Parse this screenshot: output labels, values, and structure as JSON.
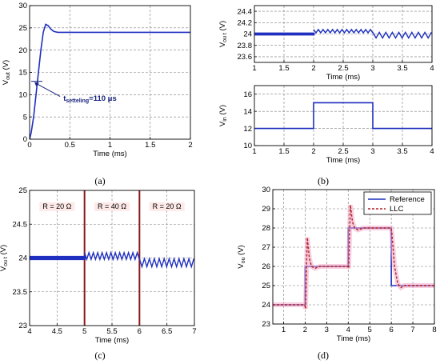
{
  "chart_data": [
    {
      "panel": "(a)",
      "type": "line",
      "xlabel": "Time (ms)",
      "ylabel": "V_out (V)",
      "ylabel_main": "V",
      "ylabel_sub": "out",
      "ylabel_unit": " (V)",
      "xlim": [
        0,
        2
      ],
      "ylim": [
        0,
        30
      ],
      "xticks": [
        0,
        0.5,
        1,
        1.5,
        2
      ],
      "yticks": [
        0,
        5,
        10,
        15,
        20,
        25,
        30
      ],
      "grid": true,
      "series": [
        {
          "color": "#1f2fbf",
          "x": [
            0,
            0.02,
            0.05,
            0.08,
            0.11,
            0.14,
            0.17,
            0.2,
            0.23,
            0.26,
            0.3,
            0.35,
            0.4,
            0.5,
            1.0,
            1.5,
            2.0
          ],
          "y": [
            0,
            1.5,
            5,
            10,
            15,
            20,
            24,
            25.8,
            25.5,
            24.8,
            24.2,
            24.0,
            24.0,
            24.0,
            24.0,
            24.0,
            24.0
          ]
        }
      ],
      "annotation": {
        "main": "t",
        "sub": "setteling",
        "rest": "=110 μs",
        "x": 0.11,
        "y": 13
      }
    },
    {
      "panel": "(b) top",
      "type": "line",
      "xlabel": "Time (ms)",
      "ylabel_main": "V",
      "ylabel_sub": "ou t",
      "ylabel_unit": " (V)",
      "xlim": [
        1,
        4
      ],
      "ylim": [
        23.5,
        24.5
      ],
      "xticks": [
        1,
        1.5,
        2,
        2.5,
        3,
        3.5,
        4
      ],
      "xtick_labels": [
        "1",
        "1.5",
        "2",
        "2.5",
        "3",
        "3.5",
        "4"
      ],
      "yticks": [
        23.6,
        23.8,
        24,
        24.2,
        24.4
      ],
      "grid": true,
      "series": [
        {
          "color": "#1f2fbf",
          "segments": [
            {
              "x0": 1,
              "x1": 2,
              "mean": 24.0,
              "amp": 0.025,
              "period": 0.01,
              "thick": true
            },
            {
              "x0": 2,
              "x1": 3,
              "mean": 24.05,
              "amp": 0.03,
              "period": 0.08
            },
            {
              "x0": 3,
              "x1": 4,
              "mean": 23.98,
              "amp": 0.05,
              "period": 0.11
            }
          ]
        }
      ]
    },
    {
      "panel": "(b) bottom",
      "type": "line",
      "xlabel": "Time (ms)",
      "ylabel_main": "V",
      "ylabel_sub": "in",
      "ylabel_unit": " (V)",
      "xlim": [
        1,
        4
      ],
      "ylim": [
        10,
        17
      ],
      "xticks": [
        1,
        1.5,
        2,
        2.5,
        3,
        3.5,
        4
      ],
      "xtick_labels": [
        "1",
        "1.5",
        "2",
        "2.5",
        "3",
        "3.5",
        "4"
      ],
      "yticks": [
        10,
        12,
        14,
        16
      ],
      "grid": true,
      "series": [
        {
          "color": "#1f2fbf",
          "x": [
            1,
            2,
            2,
            3,
            3,
            4
          ],
          "y": [
            12,
            12,
            15,
            15,
            12,
            12
          ]
        }
      ]
    },
    {
      "panel": "(c)",
      "type": "line",
      "xlabel": "Time (ms)",
      "ylabel_main": "V",
      "ylabel_sub": "ou t",
      "ylabel_unit": " (V)",
      "xlim": [
        4,
        7
      ],
      "ylim": [
        23,
        25
      ],
      "xticks": [
        4,
        4.5,
        5,
        5.5,
        6,
        6.5,
        7
      ],
      "xtick_labels": [
        "4",
        "4.5",
        "5",
        "5.5",
        "6",
        "6.5",
        "7"
      ],
      "yticks": [
        23,
        23.5,
        24,
        24.5,
        25
      ],
      "grid": true,
      "load_changes": [
        5,
        6
      ],
      "load_labels": [
        {
          "text": "R = 20 Ω",
          "x": 4.5,
          "y": 24.73
        },
        {
          "text": "R = 40 Ω",
          "x": 5.5,
          "y": 24.73
        },
        {
          "text": "R = 20 Ω",
          "x": 6.5,
          "y": 24.73
        }
      ],
      "series": [
        {
          "color": "#1f2fbf",
          "segments": [
            {
              "x0": 4,
              "x1": 5,
              "mean": 24.0,
              "amp": 0.03,
              "period": 0.01,
              "thick": true
            },
            {
              "x0": 5,
              "x1": 6,
              "mean": 24.03,
              "amp": 0.05,
              "period": 0.08
            },
            {
              "x0": 6,
              "x1": 7,
              "mean": 23.93,
              "amp": 0.06,
              "period": 0.09
            }
          ]
        }
      ]
    },
    {
      "panel": "(d)",
      "type": "line",
      "xlabel": "Time (ms)",
      "ylabel_main": "V",
      "ylabel_sub": "ou",
      "ylabel_unit": " (V)",
      "xlim": [
        0.5,
        8
      ],
      "ylim": [
        23,
        30
      ],
      "xticks": [
        1,
        2,
        3,
        4,
        5,
        6,
        7,
        8
      ],
      "xtick_labels": [
        "1",
        "2",
        "3",
        "4",
        "5",
        "6",
        "7",
        "8"
      ],
      "yticks": [
        23,
        24,
        25,
        26,
        27,
        28,
        29,
        30
      ],
      "grid": true,
      "legend": {
        "placement": "top-right",
        "entries": [
          "Reference",
          "LLC"
        ]
      },
      "series": [
        {
          "name": "Reference",
          "color": "#1f2fbf",
          "x": [
            0.5,
            2,
            2,
            4,
            4,
            6,
            6,
            8
          ],
          "y": [
            24,
            24,
            26,
            26,
            28,
            28,
            25,
            25
          ]
        },
        {
          "name": "LLC",
          "color": "#b22222",
          "x": [
            0.5,
            1.98,
            2.02,
            2.1,
            2.2,
            2.3,
            2.45,
            2.7,
            3.0,
            3.5,
            3.98,
            4.02,
            4.1,
            4.2,
            4.3,
            4.45,
            4.7,
            5.0,
            5.5,
            5.98,
            6.02,
            6.15,
            6.3,
            6.45,
            6.6,
            7.0,
            7.5,
            8.0
          ],
          "y": [
            24.0,
            24.0,
            23.8,
            27.5,
            26.4,
            26.0,
            25.9,
            26.0,
            26.0,
            26.0,
            26.0,
            25.9,
            29.2,
            28.3,
            28.0,
            27.9,
            28.0,
            28.0,
            28.0,
            28.0,
            27.8,
            26.0,
            25.1,
            24.9,
            25.0,
            25.0,
            25.0,
            25.0
          ]
        }
      ]
    }
  ],
  "panel_labels": [
    "(a)",
    "(b)",
    "(c)",
    "(d)"
  ]
}
